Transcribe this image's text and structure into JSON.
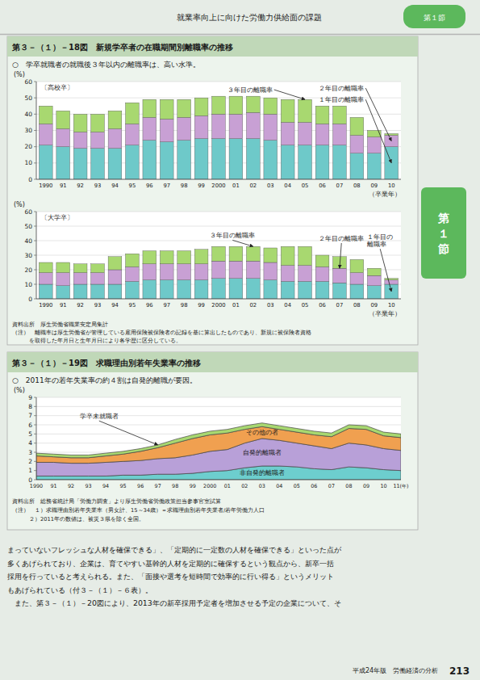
{
  "page_header": "就業率向上に向けた労働力供給面の課題",
  "section_label": "第１節",
  "body_text": "まっていないフレッシュな人材を確保できる」、「定期的に一定数の人材を確保できる」といった点が\n多くあげられており、企業は、育てやすい基幹的人材を定期的に確保するという観点から、新卒一括\n採用を行っていると考えられる。また、「面接や選考を短時間で効率的に行い得る」というメリット\nもあげられている（付３－（１）－６表）。\n　また、第３－（１）－20図により、2013年の新卒採用予定者を増加させる予定の企業について、そ",
  "page_label": "平成24年版　労働経済の分析",
  "page_number": "213",
  "chart_data": [
    {
      "type": "bar",
      "stacked": true,
      "title": "第３－（１）－18図　新規学卒者の在職期間別離職率の推移",
      "subtitle": "○　学卒就職者の就職後３年以内の離職率は、高い水準。",
      "annotations": [
        "〔高校卒〕"
      ],
      "ylabel": "(%)",
      "xlabel": "（卒業年）",
      "categories": [
        "1990",
        "91",
        "92",
        "93",
        "94",
        "95",
        "96",
        "97",
        "98",
        "99",
        "2000",
        "01",
        "02",
        "03",
        "04",
        "05",
        "06",
        "07",
        "08",
        "09",
        "10"
      ],
      "series": [
        {
          "name": "１年目の離職率",
          "color": "#6ec9c9",
          "values": [
            21,
            20,
            19,
            19,
            19,
            21,
            24,
            23,
            24,
            25,
            25,
            25,
            25,
            24,
            21,
            21,
            21,
            21,
            16,
            16,
            20
          ]
        },
        {
          "name": "２年目の離職率",
          "color": "#c8a0d4",
          "values": [
            13,
            11,
            10,
            10,
            12,
            13,
            14,
            14,
            14,
            14,
            15,
            15,
            16,
            16,
            14,
            14,
            13,
            13,
            11,
            10,
            7
          ]
        },
        {
          "name": "３年目の離職率",
          "color": "#a8d870",
          "values": [
            11,
            11,
            11,
            11,
            11,
            13,
            11,
            12,
            11,
            11,
            11,
            11,
            10,
            10,
            14,
            14,
            11,
            11,
            11,
            4,
            1
          ]
        }
      ],
      "ylim": [
        0,
        60
      ],
      "yticks": [
        0,
        10,
        20,
        30,
        40,
        50,
        60
      ],
      "grid": true
    },
    {
      "type": "bar",
      "stacked": true,
      "annotations": [
        "〔大学卒〕"
      ],
      "ylabel": "(%)",
      "xlabel": "（卒業年）",
      "notes": [
        "資料出所　厚生労働省職業安定局集計",
        "（注）　離職率は厚生労働省が管理している雇用保険被保険者の記録を基に算出したものであり、新規に被保険者資格",
        "　　　を取得した年月日と生年月日により各学歴に区分している。"
      ],
      "categories": [
        "1990",
        "91",
        "92",
        "93",
        "94",
        "95",
        "96",
        "97",
        "98",
        "99",
        "2000",
        "01",
        "02",
        "03",
        "04",
        "05",
        "06",
        "07",
        "08",
        "09",
        "10"
      ],
      "series": [
        {
          "name": "１年目の\n離職率",
          "color": "#6ec9c9",
          "values": [
            10,
            9,
            10,
            10,
            10,
            12,
            13,
            13,
            13,
            13,
            14,
            14,
            14,
            13,
            12,
            12,
            12,
            11,
            10,
            9,
            10
          ]
        },
        {
          "name": "２年目の離職率",
          "color": "#c8a0d4",
          "values": [
            8,
            9,
            8,
            8,
            10,
            10,
            11,
            11,
            11,
            11,
            12,
            12,
            12,
            12,
            11,
            11,
            10,
            10,
            8,
            7,
            3
          ]
        },
        {
          "name": "３年目の離職率",
          "color": "#a8d870",
          "values": [
            7,
            7,
            6,
            6,
            9,
            9,
            9,
            9,
            9,
            10,
            10,
            10,
            10,
            10,
            13,
            13,
            8,
            8,
            9,
            5,
            1
          ]
        }
      ],
      "ylim": [
        0,
        60
      ],
      "yticks": [
        0,
        10,
        20,
        30,
        40,
        50,
        60
      ],
      "grid": true
    },
    {
      "type": "area",
      "stacked": true,
      "title": "第３－（１）－19図　求職理由別若年失業率の推移",
      "subtitle": "○　2011年の若年失業率の約４割は自発的離職が要因。",
      "ylabel": "(%)",
      "notes": [
        "資料出所　総務省統計局「労働力調査」より厚生労働省労働政策担当参事官室試算",
        "（注）　１）求職理由別若年失業率（男女計、15～34歳）＝求職理由別若年失業者/若年労働力人口",
        "　　　２）2011年の数値は、被災３県を除く全国。"
      ],
      "categories": [
        "1990",
        "91",
        "92",
        "93",
        "94",
        "95",
        "96",
        "97",
        "98",
        "99",
        "2000",
        "01",
        "02",
        "03",
        "04",
        "05",
        "06",
        "07",
        "08",
        "09",
        "10",
        "11(年)"
      ],
      "series": [
        {
          "name": "非自発的離職者",
          "color": "#6dcece",
          "values": [
            0.4,
            0.4,
            0.4,
            0.4,
            0.4,
            0.5,
            0.5,
            0.6,
            0.6,
            0.7,
            0.9,
            1.0,
            1.3,
            1.5,
            1.5,
            1.4,
            1.2,
            1.1,
            1.4,
            1.3,
            1.1,
            1.0
          ]
        },
        {
          "name": "自発的離職者",
          "color": "#b8a0d8",
          "values": [
            1.5,
            1.5,
            1.4,
            1.4,
            1.5,
            1.5,
            1.6,
            1.7,
            1.8,
            2.0,
            2.2,
            2.3,
            2.7,
            3.0,
            2.8,
            2.6,
            2.5,
            2.3,
            2.6,
            2.5,
            2.3,
            2.2
          ]
        },
        {
          "name": "その他の者",
          "color": "#f0a050",
          "values": [
            0.7,
            0.6,
            0.6,
            0.6,
            0.7,
            0.8,
            1.0,
            1.2,
            1.6,
            1.8,
            1.8,
            1.8,
            1.5,
            1.3,
            1.2,
            1.2,
            1.2,
            1.3,
            1.6,
            1.7,
            1.4,
            1.4
          ]
        },
        {
          "name": "学卒未就職者",
          "color": "#a8d870",
          "values": [
            0.3,
            0.3,
            0.3,
            0.3,
            0.3,
            0.3,
            0.3,
            0.3,
            0.4,
            0.4,
            0.4,
            0.4,
            0.4,
            0.4,
            0.4,
            0.4,
            0.4,
            0.4,
            0.4,
            0.4,
            0.4,
            0.4
          ]
        }
      ],
      "ylim": [
        0,
        9
      ],
      "yticks": [
        0,
        1,
        2,
        3,
        4,
        5,
        6,
        7,
        8,
        9
      ],
      "grid": true
    }
  ]
}
